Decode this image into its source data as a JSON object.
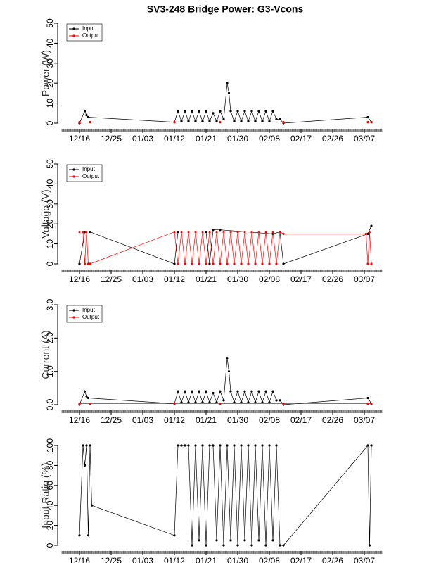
{
  "title": "SV3-248 Bridge Power: G3-Vcons",
  "chart_data": [
    {
      "type": "line",
      "y_label": "Power (W)",
      "legend": "top-left",
      "xlim": [
        -5,
        86
      ],
      "ylim": [
        0,
        50
      ],
      "xticks": [
        {
          "value": 0,
          "label": "12/16"
        },
        {
          "value": 9,
          "label": "12/25"
        },
        {
          "value": 18,
          "label": "01/03"
        },
        {
          "value": 27,
          "label": "01/12"
        },
        {
          "value": 36,
          "label": "01/21"
        },
        {
          "value": 45,
          "label": "01/30"
        },
        {
          "value": 54,
          "label": "02/08"
        },
        {
          "value": 63,
          "label": "02/17"
        },
        {
          "value": 72,
          "label": "02/26"
        },
        {
          "value": 81,
          "label": "03/07"
        }
      ],
      "yticks": [
        0,
        10,
        20,
        30,
        40,
        50
      ],
      "series": [
        {
          "name": "Input",
          "color": "#000000",
          "x": [
            0,
            1.5,
            2,
            2.5,
            27,
            28,
            29,
            30,
            31,
            32,
            33,
            34,
            35,
            36,
            37,
            38,
            39,
            40,
            41,
            42,
            42.5,
            43,
            44,
            45,
            46,
            47,
            48,
            49,
            50,
            51,
            52,
            53,
            54,
            55,
            56,
            57,
            58,
            82,
            83
          ],
          "values": [
            0,
            6,
            4,
            3,
            0.5,
            6,
            1,
            6,
            1,
            6,
            1,
            6,
            1,
            6,
            1,
            5,
            1,
            6,
            2,
            20,
            15,
            6,
            1,
            6,
            1,
            6,
            1,
            6,
            1,
            6,
            1,
            6,
            1,
            6,
            2,
            2,
            0,
            3,
            0.5
          ]
        },
        {
          "name": "Output",
          "color": "#ff0000",
          "x": [
            0,
            3,
            27,
            40,
            58,
            82,
            83
          ],
          "values": [
            0.5,
            0.5,
            0.5,
            0.5,
            0.5,
            0.5,
            0.5
          ]
        }
      ]
    },
    {
      "type": "line",
      "y_label": "Voltage (V)",
      "legend": "top-left",
      "xlim": [
        -5,
        86
      ],
      "ylim": [
        0,
        50
      ],
      "xticks": [
        {
          "value": 0,
          "label": "12/16"
        },
        {
          "value": 9,
          "label": "12/25"
        },
        {
          "value": 18,
          "label": "01/03"
        },
        {
          "value": 27,
          "label": "01/12"
        },
        {
          "value": 36,
          "label": "01/21"
        },
        {
          "value": 45,
          "label": "01/30"
        },
        {
          "value": 54,
          "label": "02/08"
        },
        {
          "value": 63,
          "label": "02/17"
        },
        {
          "value": 72,
          "label": "02/26"
        },
        {
          "value": 81,
          "label": "03/07"
        }
      ],
      "yticks": [
        0,
        10,
        20,
        30,
        40,
        50
      ],
      "series": [
        {
          "name": "Input",
          "color": "#000000",
          "x": [
            0,
            1.5,
            3,
            27,
            28,
            36,
            37,
            38,
            40,
            55,
            57,
            58,
            82,
            83
          ],
          "values": [
            0,
            16,
            16,
            0,
            16,
            16,
            0,
            17,
            17,
            15,
            16,
            0,
            15,
            19
          ]
        },
        {
          "name": "Output",
          "color": "#ff0000",
          "x": [
            0,
            1,
            1.5,
            2,
            2.5,
            3,
            27,
            28,
            29,
            30,
            31,
            32,
            33,
            34,
            35,
            36,
            37,
            38,
            39,
            40,
            41,
            42,
            43,
            44,
            45,
            46,
            47,
            48,
            49,
            50,
            51,
            52,
            53,
            54,
            55,
            56,
            57,
            58,
            81.5,
            82,
            82.5,
            83
          ],
          "values": [
            16,
            16,
            0,
            16,
            0,
            0,
            16,
            0,
            16,
            0,
            16,
            0,
            16,
            0,
            16,
            0,
            16,
            0,
            16,
            0,
            16,
            0,
            16,
            0,
            16,
            0,
            16,
            0,
            16,
            0,
            16,
            0,
            16,
            0,
            16,
            0,
            16,
            15,
            15,
            0,
            16,
            0
          ]
        }
      ]
    },
    {
      "type": "line",
      "y_label": "Current (A)",
      "legend": "top-left",
      "xlim": [
        -5,
        86
      ],
      "ylim": [
        0,
        3
      ],
      "xticks": [
        {
          "value": 0,
          "label": "12/16"
        },
        {
          "value": 9,
          "label": "12/25"
        },
        {
          "value": 18,
          "label": "01/03"
        },
        {
          "value": 27,
          "label": "01/12"
        },
        {
          "value": 36,
          "label": "01/21"
        },
        {
          "value": 45,
          "label": "01/30"
        },
        {
          "value": 54,
          "label": "02/08"
        },
        {
          "value": 63,
          "label": "02/17"
        },
        {
          "value": 72,
          "label": "02/26"
        },
        {
          "value": 81,
          "label": "03/07"
        }
      ],
      "yticks": [
        {
          "value": 0,
          "label": "0.0"
        },
        {
          "value": 1,
          "label": "1.0"
        },
        {
          "value": 2,
          "label": "2.0"
        },
        {
          "value": 3,
          "label": "3.0"
        }
      ],
      "series": [
        {
          "name": "Input",
          "color": "#000000",
          "x": [
            0,
            1.5,
            2,
            2.5,
            27,
            28,
            29,
            30,
            31,
            32,
            33,
            34,
            35,
            36,
            37,
            38,
            39,
            40,
            41,
            42,
            42.5,
            43,
            44,
            45,
            46,
            47,
            48,
            49,
            50,
            51,
            52,
            53,
            54,
            55,
            56,
            57,
            58,
            82,
            83
          ],
          "values": [
            0,
            0.4,
            0.25,
            0.2,
            0.03,
            0.4,
            0.07,
            0.4,
            0.07,
            0.4,
            0.07,
            0.4,
            0.07,
            0.4,
            0.07,
            0.35,
            0.07,
            0.4,
            0.13,
            1.4,
            1.0,
            0.4,
            0.07,
            0.4,
            0.07,
            0.4,
            0.07,
            0.4,
            0.07,
            0.4,
            0.07,
            0.4,
            0.07,
            0.4,
            0.13,
            0.13,
            0,
            0.2,
            0.03
          ]
        },
        {
          "name": "Output",
          "color": "#ff0000",
          "x": [
            0,
            3,
            27,
            40,
            58,
            82,
            83
          ],
          "values": [
            0.03,
            0.03,
            0.03,
            0.03,
            0.03,
            0.03,
            0.03
          ]
        }
      ]
    },
    {
      "type": "line",
      "y_label": "Input Ratio (%)",
      "xlim": [
        -5,
        86
      ],
      "ylim": [
        0,
        100
      ],
      "xticks": [
        {
          "value": 0,
          "label": "12/16"
        },
        {
          "value": 9,
          "label": "12/25"
        },
        {
          "value": 18,
          "label": "01/03"
        },
        {
          "value": 27,
          "label": "01/12"
        },
        {
          "value": 36,
          "label": "01/21"
        },
        {
          "value": 45,
          "label": "01/30"
        },
        {
          "value": 54,
          "label": "02/08"
        },
        {
          "value": 63,
          "label": "02/17"
        },
        {
          "value": 72,
          "label": "02/26"
        },
        {
          "value": 81,
          "label": "03/07"
        }
      ],
      "yticks": [
        0,
        20,
        40,
        60,
        80,
        100
      ],
      "series": [
        {
          "color": "#000000",
          "x": [
            0,
            1,
            1.5,
            2,
            2.5,
            3,
            3.5,
            27,
            28,
            29,
            30,
            31,
            32,
            33,
            34,
            35,
            36,
            37,
            38,
            39,
            40,
            41,
            42,
            43,
            44,
            45,
            46,
            47,
            48,
            49,
            50,
            51,
            52,
            53,
            54,
            55,
            56,
            57,
            58,
            82,
            82.5,
            83
          ],
          "values": [
            10,
            100,
            80,
            100,
            10,
            100,
            40,
            10,
            100,
            100,
            100,
            100,
            0,
            100,
            5,
            100,
            0,
            100,
            100,
            5,
            100,
            0,
            100,
            5,
            100,
            0,
            100,
            5,
            100,
            0,
            100,
            5,
            100,
            0,
            100,
            5,
            100,
            0,
            0,
            100,
            0,
            100
          ]
        }
      ]
    }
  ]
}
